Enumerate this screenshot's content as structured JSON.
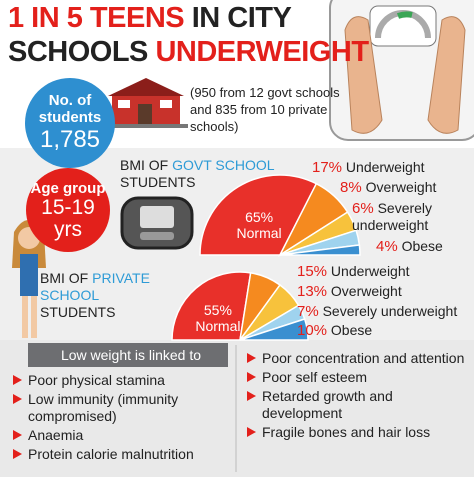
{
  "header": {
    "line1_highlight": "1 IN 5 TEENS",
    "line1_rest": "IN CITY",
    "line2_start": "SCHOOLS",
    "line2_highlight": "UNDERWEIGHT"
  },
  "students": {
    "label": "No. of students",
    "count": "1,785",
    "note": "(950 from 12 govt schools and 835 from 10 private schools)"
  },
  "age_group": {
    "label": "Age group",
    "range": "15-19 yrs"
  },
  "chart_data": [
    {
      "type": "pie",
      "title_start": "BMI OF",
      "title_highlight": "GOVT SCHOOL",
      "title_end": "STUDENTS",
      "categories": [
        "Normal",
        "Underweight",
        "Overweight",
        "Severely underweight",
        "Obese"
      ],
      "values": [
        65,
        17,
        8,
        6,
        4
      ],
      "value_labels": [
        "65%",
        "17%",
        "8%",
        "6%",
        "4%"
      ],
      "colors": [
        "#e8302a",
        "#f58a1f",
        "#f7c23c",
        "#9fd3ee",
        "#3a8fd0"
      ]
    },
    {
      "type": "pie",
      "title_start": "BMI OF",
      "title_highlight": "PRIVATE SCHOOL",
      "title_end": "STUDENTS",
      "categories": [
        "Normal",
        "Underweight",
        "Overweight",
        "Severely underweight",
        "Obese"
      ],
      "values": [
        55,
        15,
        13,
        7,
        10
      ],
      "value_labels": [
        "55%",
        "15%",
        "13%",
        "7%",
        "10%"
      ],
      "colors": [
        "#e8302a",
        "#f58a1f",
        "#f7c23c",
        "#9fd3ee",
        "#3a8fd0"
      ]
    }
  ],
  "linked_to": {
    "header": "Low weight is linked to",
    "left": [
      "Poor physical stamina",
      "Low immunity (immunity compromised)",
      "Anaemia",
      "Protein calorie malnutrition"
    ],
    "right": [
      "Poor concentration and attention",
      "Poor self esteem",
      "Retarded growth and development",
      "Fragile bones and hair loss"
    ]
  }
}
